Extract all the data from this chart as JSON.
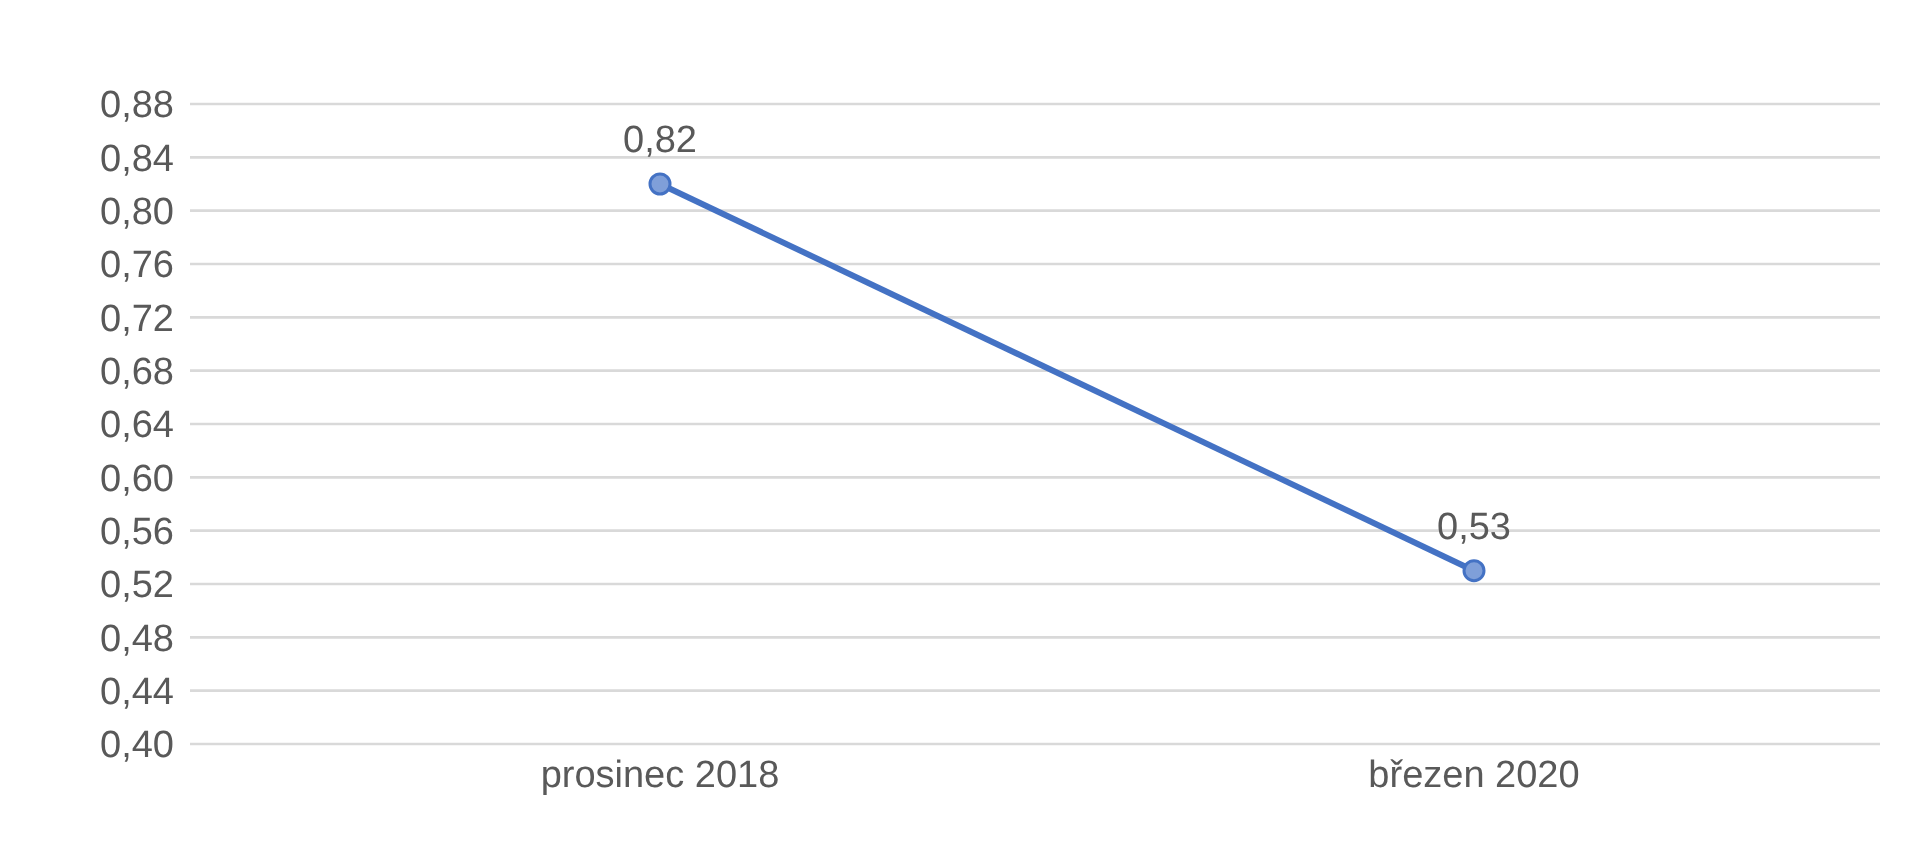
{
  "chart_data": {
    "type": "line",
    "categories": [
      "prosinec 2018",
      "březen 2020"
    ],
    "series": [
      {
        "color": "#4472c4",
        "values": [
          0.82,
          0.53
        ],
        "value_labels": [
          "0,82",
          "0,53"
        ]
      }
    ],
    "ylim": [
      0.4,
      0.88
    ],
    "yticks": [
      {
        "value": 0.4,
        "label": "0,40"
      },
      {
        "value": 0.44,
        "label": "0,44"
      },
      {
        "value": 0.48,
        "label": "0,48"
      },
      {
        "value": 0.52,
        "label": "0,52"
      },
      {
        "value": 0.56,
        "label": "0,56"
      },
      {
        "value": 0.6,
        "label": "0,60"
      },
      {
        "value": 0.64,
        "label": "0,64"
      },
      {
        "value": 0.68,
        "label": "0,68"
      },
      {
        "value": 0.72,
        "label": "0,72"
      },
      {
        "value": 0.76,
        "label": "0,76"
      },
      {
        "value": 0.8,
        "label": "0,80"
      },
      {
        "value": 0.84,
        "label": "0,84"
      },
      {
        "value": 0.88,
        "label": "0,88"
      }
    ],
    "grid": "y",
    "marker": "circle",
    "line_style": "solid",
    "legend": false
  }
}
